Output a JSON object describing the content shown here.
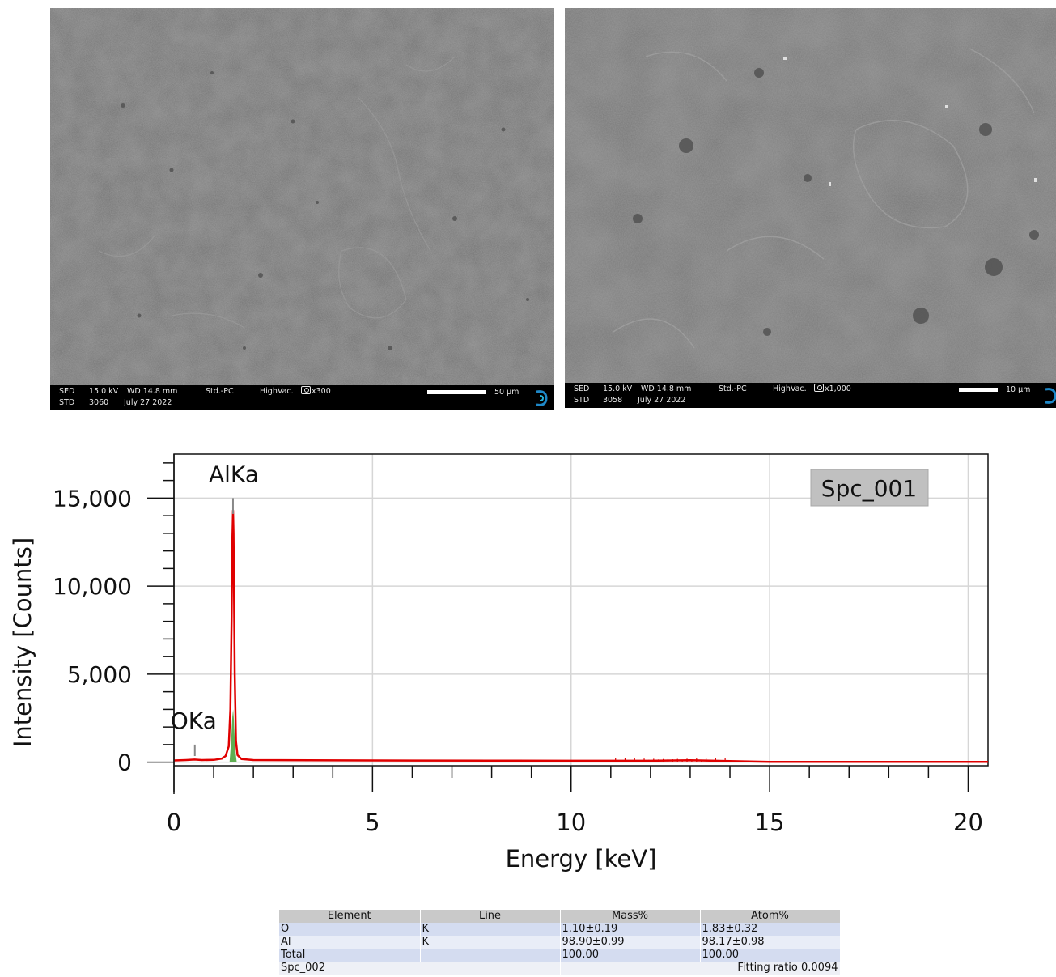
{
  "sem_images": [
    {
      "detector": "SED",
      "voltage": "15.0 kV",
      "wd": "WD 14.8 mm",
      "mode": "Std.-PC",
      "vacuum": "HighVac.",
      "magnification": "x300",
      "std": "STD",
      "image_no": "3060",
      "date": "July 27 2022",
      "scale": "50 µm"
    },
    {
      "detector": "SED",
      "voltage": "15.0 kV",
      "wd": "WD 14.8 mm",
      "mode": "Std.-PC",
      "vacuum": "HighVac.",
      "magnification": "x1,000",
      "std": "STD",
      "image_no": "3058",
      "date": "July 27 2022",
      "scale": "10 µm"
    }
  ],
  "chart_data": {
    "type": "line",
    "xlabel": "Energy [keV]",
    "ylabel": "Intensity [Counts]",
    "xlim": [
      0,
      20.5
    ],
    "ylim": [
      -200,
      17500
    ],
    "x_ticks": [
      0,
      5,
      10,
      15,
      20
    ],
    "x_tick_labels": [
      "0",
      "5",
      "10",
      "15",
      "20"
    ],
    "y_ticks": [
      0,
      5000,
      10000,
      15000
    ],
    "y_tick_labels": [
      "0",
      "5,000",
      "10,000",
      "15,000"
    ],
    "grid": true,
    "legend_label": "Spc_001",
    "legend_position": "top-right",
    "series": [
      {
        "color": "#e00000",
        "x": [
          0,
          0.3,
          0.52,
          0.7,
          1.0,
          1.2,
          1.3,
          1.38,
          1.42,
          1.45,
          1.47,
          1.487,
          1.5,
          1.53,
          1.56,
          1.6,
          1.7,
          2.0,
          5.0,
          8.0,
          10.0,
          12.0,
          13.0,
          14.0,
          14.5,
          15.0,
          20.5
        ],
        "y": [
          100,
          120,
          150,
          120,
          130,
          200,
          350,
          900,
          3000,
          8000,
          12500,
          14300,
          13000,
          5000,
          1200,
          400,
          180,
          120,
          100,
          90,
          80,
          80,
          110,
          60,
          40,
          20,
          20
        ]
      }
    ],
    "fill_series": {
      "color": "#5fae52",
      "x": [
        1.4,
        1.44,
        1.47,
        1.49,
        1.51,
        1.54,
        1.58
      ],
      "y": [
        0,
        1200,
        2600,
        3000,
        2400,
        800,
        0
      ]
    },
    "peak_labels": [
      {
        "label": "AlKa",
        "energy": 1.487,
        "marker_top": 15000,
        "marker_bottom": 14100
      },
      {
        "label": "OKa",
        "energy": 0.525,
        "marker_top": 1000,
        "marker_bottom": 350
      }
    ]
  },
  "table": {
    "headers": [
      "Element",
      "Line",
      "Mass%",
      "Atom%"
    ],
    "rows": [
      [
        "O",
        "K",
        "1.10±0.19",
        "1.83±0.32"
      ],
      [
        "Al",
        "K",
        "98.90±0.99",
        "98.17±0.98"
      ],
      [
        "Total",
        "",
        "100.00",
        "100.00"
      ]
    ],
    "footer_left": "Spc_002",
    "footer_right": "Fitting ratio 0.0094"
  }
}
